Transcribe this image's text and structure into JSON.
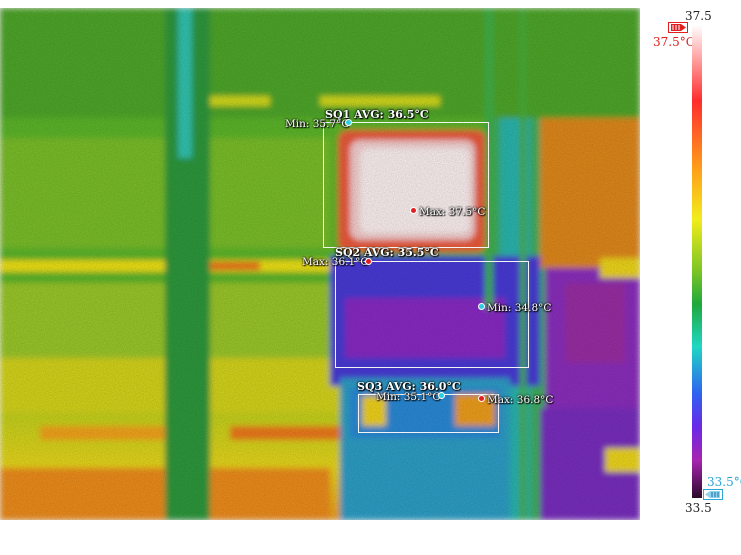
{
  "regions": [
    {
      "name": "SQ1",
      "avg_label": "SQ1 AVG: 36.5°C",
      "min_label": "Min: 35.7°C",
      "max_label": "Max: 37.5°C"
    },
    {
      "name": "SQ2",
      "avg_label": "SQ2 AVG: 35.5°C",
      "min_label": "Min: 34.8°C",
      "max_label": "Max: 36.1°C"
    },
    {
      "name": "SQ3",
      "avg_label": "SQ3 AVG: 36.0°C",
      "min_label": "Min: 35.1°C",
      "max_label": "Max: 36.8°C"
    }
  ],
  "scale": {
    "max": "37.5",
    "min": "33.5",
    "high_threshold": "37.5°C",
    "low_threshold": "33.5°C",
    "high_color": "#e02020",
    "low_color": "#2aa6d8"
  },
  "icons": {
    "high_marker": "red-flag-thumb-icon",
    "low_marker": "blue-flag-thumb-icon"
  }
}
